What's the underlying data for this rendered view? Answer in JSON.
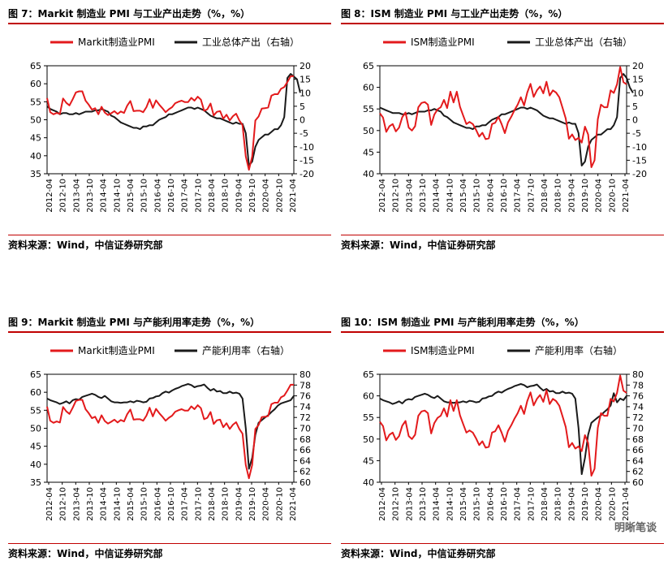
{
  "panels": [
    {
      "title": "图 7：Markit 制造业 PMI 与工业产出走势（%，%）",
      "source": "资料来源：Wind，中信证券研究部"
    },
    {
      "title": "图 8：ISM 制造业 PMI 与工业产出走势（%，%）",
      "source": "资料来源：Wind，中信证券研究部"
    },
    {
      "title": "图 9：Markit 制造业 PMI 与产能利用率走势（%，%）",
      "source": "资料来源：Wind，中信证券研究部"
    },
    {
      "title": "图 10：ISM 制造业 PMI 与产能利用率走势（%，%）",
      "source": "资料来源：Wind，中信证券研究部"
    }
  ],
  "watermark": "明晰笔谈",
  "chart_data": [
    {
      "type": "line",
      "x_ticks": [
        "2012-04",
        "2012-10",
        "2013-04",
        "2013-10",
        "2014-04",
        "2014-10",
        "2015-04",
        "2015-10",
        "2016-04",
        "2016-10",
        "2017-04",
        "2017-10",
        "2018-04",
        "2018-10",
        "2019-04",
        "2019-10",
        "2020-04",
        "2020-10",
        "2021-04"
      ],
      "y_left": {
        "min": 35,
        "max": 65,
        "ticks": [
          35,
          40,
          45,
          50,
          55,
          60,
          65
        ]
      },
      "y_right": {
        "min": -20,
        "max": 20,
        "ticks": [
          -20,
          -15,
          -10,
          -5,
          0,
          5,
          10,
          15,
          20
        ]
      },
      "series": [
        {
          "name": "Markit制造业PMI",
          "color": "#e31a1c",
          "axis": "left",
          "values": [
            56.0,
            52.1,
            51.5,
            51.9,
            51.6,
            55.9,
            54.7,
            54.0,
            55.7,
            57.6,
            57.9,
            57.9,
            55.3,
            54.2,
            52.8,
            53.2,
            51.5,
            53.6,
            52.0,
            51.3,
            51.8,
            52.4,
            51.6,
            52.3,
            51.9,
            53.9,
            55.2,
            52.4,
            52.5,
            52.5,
            52.1,
            53.5,
            55.7,
            53.3,
            55.4,
            54.2,
            53.2,
            52.1,
            52.9,
            53.5,
            54.6,
            55.0,
            55.3,
            54.9,
            54.9,
            56.1,
            55.3,
            56.4,
            55.6,
            52.5,
            52.9,
            54.5,
            51.2,
            52.2,
            52.4,
            50.3,
            51.4,
            49.8,
            51.0,
            51.7,
            49.8,
            48.5,
            39.8,
            36.1,
            39.8,
            49.8,
            50.9,
            53.1,
            53.2,
            53.4,
            56.7,
            57.1,
            57.1,
            58.6,
            59.1,
            60.5,
            62.1,
            62.1
          ]
        },
        {
          "name": "工业总体产出（右轴）",
          "color": "#1a1a1a",
          "axis": "right",
          "values": [
            5.0,
            4.0,
            3.5,
            3.0,
            2.0,
            2.5,
            2.5,
            2.0,
            2.0,
            2.5,
            2.0,
            2.5,
            3.0,
            3.0,
            3.0,
            3.5,
            3.5,
            4.0,
            3.5,
            3.0,
            1.5,
            1.0,
            0.0,
            -1.0,
            -1.5,
            -2.0,
            -2.5,
            -3.0,
            -3.0,
            -3.5,
            -2.5,
            -2.5,
            -2.0,
            -2.0,
            -1.0,
            0.0,
            0.5,
            1.0,
            2.0,
            2.0,
            2.5,
            3.0,
            3.5,
            4.0,
            4.5,
            4.5,
            4.0,
            4.5,
            4.0,
            3.5,
            2.5,
            1.5,
            1.0,
            0.5,
            0.5,
            0.0,
            -0.5,
            -1.0,
            -1.5,
            -1.0,
            -1.5,
            -1.5,
            -5.0,
            -17.0,
            -15.5,
            -10.0,
            -7.5,
            -6.5,
            -5.5,
            -5.5,
            -4.5,
            -3.5,
            -3.5,
            -2.0,
            1.0,
            15.5,
            17.0,
            16.0,
            15.0,
            10.0
          ]
        }
      ],
      "legend_position": "top"
    },
    {
      "type": "line",
      "x_ticks": [
        "2012-04",
        "2012-10",
        "2013-04",
        "2013-10",
        "2014-04",
        "2014-10",
        "2015-04",
        "2015-10",
        "2016-04",
        "2016-10",
        "2017-04",
        "2017-10",
        "2018-04",
        "2018-10",
        "2019-04",
        "2019-10",
        "2020-04",
        "2020-10",
        "2021-04"
      ],
      "y_left": {
        "min": 40,
        "max": 65,
        "ticks": [
          40,
          45,
          50,
          55,
          60,
          65
        ]
      },
      "y_right": {
        "min": -20,
        "max": 20,
        "ticks": [
          -20,
          -15,
          -10,
          -5,
          0,
          5,
          10,
          15,
          20
        ]
      },
      "series": [
        {
          "name": "ISM制造业PMI",
          "color": "#e31a1c",
          "axis": "left",
          "values": [
            54.0,
            53.0,
            49.7,
            51.0,
            51.5,
            49.8,
            50.7,
            53.1,
            54.2,
            50.7,
            50.0,
            51.0,
            55.4,
            56.4,
            56.6,
            56.0,
            51.3,
            53.7,
            54.9,
            55.4,
            57.1,
            55.2,
            59.0,
            56.5,
            59.0,
            55.5,
            53.5,
            51.5,
            52.0,
            51.5,
            50.2,
            48.6,
            49.5,
            48.0,
            48.2,
            51.5,
            51.8,
            53.2,
            51.5,
            49.4,
            51.9,
            53.2,
            54.7,
            56.0,
            57.7,
            55.8,
            58.8,
            60.8,
            57.8,
            59.3,
            60.2,
            58.6,
            61.3,
            58.1,
            59.3,
            58.8,
            57.7,
            55.3,
            52.8,
            48.1,
            49.1,
            47.8,
            48.3,
            47.2,
            50.9,
            49.1,
            41.5,
            43.1,
            52.6,
            56.0,
            55.4,
            55.4,
            59.3,
            58.7,
            60.7,
            64.7,
            61.2,
            60.7
          ]
        },
        {
          "name": "工业总体产出（右轴）",
          "color": "#1a1a1a",
          "axis": "right",
          "values": [
            4.5,
            4.0,
            3.5,
            3.0,
            2.5,
            2.5,
            2.5,
            2.0,
            2.0,
            2.5,
            2.0,
            2.5,
            3.0,
            3.0,
            3.0,
            3.5,
            3.5,
            4.0,
            3.5,
            3.0,
            1.5,
            1.0,
            0.0,
            -1.0,
            -1.5,
            -2.0,
            -2.5,
            -3.0,
            -3.0,
            -3.5,
            -2.5,
            -2.5,
            -2.0,
            -2.0,
            -1.0,
            0.0,
            0.5,
            1.0,
            2.0,
            2.0,
            2.5,
            3.0,
            3.5,
            4.0,
            4.5,
            4.5,
            4.0,
            4.5,
            4.0,
            3.5,
            2.5,
            1.5,
            1.0,
            0.5,
            0.5,
            0.0,
            -0.5,
            -1.0,
            -1.5,
            -1.0,
            -1.5,
            -1.5,
            -5.0,
            -17.0,
            -15.5,
            -10.0,
            -7.5,
            -6.5,
            -5.5,
            -5.5,
            -4.5,
            -3.5,
            -3.5,
            -2.0,
            1.0,
            15.5,
            17.0,
            15.5,
            12.0,
            10.0
          ]
        }
      ],
      "legend_position": "top"
    },
    {
      "type": "line",
      "x_ticks": [
        "2012-04",
        "2012-10",
        "2013-04",
        "2013-10",
        "2014-04",
        "2014-10",
        "2015-04",
        "2015-10",
        "2016-04",
        "2016-10",
        "2017-04",
        "2017-10",
        "2018-04",
        "2018-10",
        "2019-04",
        "2019-10",
        "2020-04",
        "2020-10",
        "2021-04"
      ],
      "y_left": {
        "min": 35,
        "max": 65,
        "ticks": [
          35,
          40,
          45,
          50,
          55,
          60,
          65
        ]
      },
      "y_right": {
        "min": 60,
        "max": 80,
        "ticks": [
          60,
          62,
          64,
          66,
          68,
          70,
          72,
          74,
          76,
          78,
          80
        ]
      },
      "series": [
        {
          "name": "Markit制造业PMI",
          "color": "#e31a1c",
          "axis": "left",
          "values": [
            56.0,
            52.1,
            51.5,
            51.9,
            51.6,
            55.9,
            54.7,
            54.0,
            55.7,
            57.6,
            57.9,
            57.9,
            55.3,
            54.2,
            52.8,
            53.2,
            51.5,
            53.6,
            52.0,
            51.3,
            51.8,
            52.4,
            51.6,
            52.3,
            51.9,
            53.9,
            55.2,
            52.4,
            52.5,
            52.5,
            52.1,
            53.5,
            55.7,
            53.3,
            55.4,
            54.2,
            53.2,
            52.1,
            52.9,
            53.5,
            54.6,
            55.0,
            55.3,
            54.9,
            54.9,
            56.1,
            55.3,
            56.4,
            55.6,
            52.5,
            52.9,
            54.5,
            51.2,
            52.2,
            52.4,
            50.3,
            51.4,
            49.8,
            51.0,
            51.7,
            49.8,
            48.5,
            39.8,
            36.1,
            39.8,
            49.8,
            50.9,
            53.1,
            53.2,
            53.4,
            56.7,
            57.1,
            57.1,
            58.6,
            59.1,
            60.5,
            62.1,
            62.1
          ]
        },
        {
          "name": "产能利用率（右轴）",
          "color": "#1a1a1a",
          "axis": "right",
          "values": [
            75.5,
            75.2,
            75.0,
            74.8,
            74.5,
            74.7,
            75.0,
            74.6,
            75.2,
            75.4,
            75.3,
            75.8,
            76.0,
            76.2,
            76.4,
            76.2,
            75.8,
            75.6,
            76.0,
            75.5,
            75.0,
            74.8,
            74.8,
            74.7,
            74.8,
            74.8,
            75.0,
            74.8,
            75.1,
            75.0,
            74.8,
            74.9,
            75.5,
            75.6,
            75.9,
            76.0,
            76.5,
            76.8,
            76.6,
            77.0,
            77.3,
            77.5,
            77.8,
            78.0,
            78.2,
            78.0,
            77.6,
            77.8,
            77.9,
            78.1,
            77.5,
            77.0,
            77.3,
            76.8,
            76.9,
            76.5,
            76.5,
            76.8,
            76.5,
            76.6,
            76.4,
            75.5,
            70.0,
            62.5,
            64.5,
            68.8,
            71.0,
            71.5,
            72.0,
            72.4,
            73.0,
            73.5,
            74.2,
            74.6,
            74.8,
            75.0,
            75.2,
            76.0
          ]
        }
      ],
      "legend_position": "top"
    },
    {
      "type": "line",
      "x_ticks": [
        "2012-04",
        "2012-10",
        "2013-04",
        "2013-10",
        "2014-04",
        "2014-10",
        "2015-04",
        "2015-10",
        "2016-04",
        "2016-10",
        "2017-04",
        "2017-10",
        "2018-04",
        "2018-10",
        "2019-04",
        "2019-10",
        "2020-04",
        "2020-10",
        "2021-04"
      ],
      "y_left": {
        "min": 40,
        "max": 65,
        "ticks": [
          40,
          45,
          50,
          55,
          60,
          65
        ]
      },
      "y_right": {
        "min": 60,
        "max": 80,
        "ticks": [
          60,
          62,
          64,
          66,
          68,
          70,
          72,
          74,
          76,
          78,
          80
        ]
      },
      "series": [
        {
          "name": "ISM制造业PMI",
          "color": "#e31a1c",
          "axis": "left",
          "values": [
            54.0,
            53.0,
            49.7,
            51.0,
            51.5,
            49.8,
            50.7,
            53.1,
            54.2,
            50.7,
            50.0,
            51.0,
            55.4,
            56.4,
            56.6,
            56.0,
            51.3,
            53.7,
            54.9,
            55.4,
            57.1,
            55.2,
            59.0,
            56.5,
            59.0,
            55.5,
            53.5,
            51.5,
            52.0,
            51.5,
            50.2,
            48.6,
            49.5,
            48.0,
            48.2,
            51.5,
            51.8,
            53.2,
            51.5,
            49.4,
            51.9,
            53.2,
            54.7,
            56.0,
            57.7,
            55.8,
            58.8,
            60.8,
            57.8,
            59.3,
            60.2,
            58.6,
            61.3,
            58.1,
            59.3,
            58.8,
            57.7,
            55.3,
            52.8,
            48.1,
            49.1,
            47.8,
            48.3,
            47.2,
            50.9,
            49.1,
            41.5,
            43.1,
            52.6,
            56.0,
            55.4,
            55.4,
            59.3,
            58.7,
            60.7,
            64.7,
            61.2,
            60.7
          ]
        },
        {
          "name": "产能利用率（右轴）",
          "color": "#1a1a1a",
          "axis": "right",
          "values": [
            75.5,
            75.2,
            75.0,
            74.8,
            74.5,
            74.7,
            75.0,
            74.6,
            75.2,
            75.4,
            75.3,
            75.8,
            76.0,
            76.2,
            76.4,
            76.2,
            75.8,
            75.6,
            76.0,
            75.5,
            75.0,
            74.8,
            74.8,
            74.7,
            74.8,
            74.8,
            75.0,
            74.8,
            75.1,
            75.0,
            74.8,
            74.9,
            75.5,
            75.6,
            75.9,
            76.0,
            76.5,
            76.8,
            76.6,
            77.0,
            77.3,
            77.5,
            77.8,
            78.0,
            78.2,
            78.0,
            77.6,
            77.8,
            77.9,
            78.1,
            77.5,
            77.0,
            77.3,
            76.8,
            76.9,
            76.5,
            76.5,
            76.8,
            76.5,
            76.6,
            76.4,
            75.5,
            70.0,
            61.5,
            64.5,
            68.8,
            71.0,
            71.5,
            72.0,
            72.4,
            73.0,
            73.5,
            74.2,
            76.5,
            74.8,
            75.5,
            75.2,
            76.0
          ]
        }
      ],
      "legend_position": "top"
    }
  ]
}
